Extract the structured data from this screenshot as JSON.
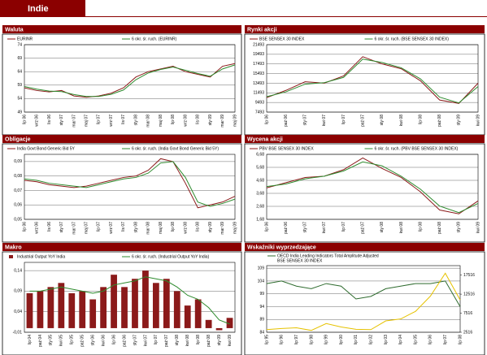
{
  "title": "Indie",
  "chart_data": [
    {
      "type": "line",
      "title": "Waluta",
      "categories": [
        "lip 06",
        "wrz 06",
        "lis 06",
        "sty 07",
        "mar 07",
        "maj 07",
        "lip 07",
        "wrz 07",
        "lis 07",
        "sty 08",
        "mar 08",
        "maj 08",
        "lip 08",
        "wrz 08",
        "lis 08",
        "sty 09",
        "mar 09",
        "maj 09"
      ],
      "series": [
        {
          "name": "EURINR",
          "color": "#8b1a1a",
          "values": [
            58,
            57,
            56.5,
            57,
            55,
            54.5,
            55,
            56,
            58,
            62,
            64,
            65,
            66,
            64,
            63,
            62,
            66,
            67
          ]
        },
        {
          "name": "6 okr. śr. ruch. (EURINR)",
          "color": "#2e8b2e",
          "values": [
            58.5,
            57.5,
            56.8,
            56.6,
            55.5,
            54.8,
            54.8,
            55.6,
            57.2,
            61,
            63.5,
            64.8,
            65.7,
            64.5,
            63.3,
            62.3,
            65,
            66.5
          ]
        }
      ],
      "ylim": [
        49,
        74
      ],
      "yticks": [
        49,
        54,
        59,
        64,
        69,
        74
      ],
      "grid": true
    },
    {
      "type": "line",
      "title": "Rynki akcji",
      "categories": [
        "lip 06",
        "paź 06",
        "sty 07",
        "kwi 07",
        "lip 07",
        "paź 07",
        "sty 08",
        "kwi 08",
        "lip 08",
        "paź 08",
        "sty 09",
        "kwi 09"
      ],
      "series": [
        {
          "name": "BSE SENSEX 30 INDEX",
          "color": "#8b1a1a",
          "values": [
            10500,
            12000,
            13800,
            13500,
            15000,
            19000,
            17500,
            16500,
            14000,
            10000,
            9300,
            13500
          ]
        },
        {
          "name": "6 okr. śr. ruch. (BSE SENSEX 30 INDEX)",
          "color": "#2e8b2e",
          "values": [
            10700,
            11700,
            13300,
            13600,
            14700,
            18500,
            17800,
            16700,
            14400,
            10600,
            9400,
            12800
          ]
        }
      ],
      "ylim": [
        7493,
        21493
      ],
      "yticks": [
        7493,
        9493,
        11493,
        13493,
        15493,
        17493,
        19493,
        21493
      ],
      "grid": true
    },
    {
      "type": "line",
      "title": "Obligacje",
      "categories": [
        "lip 06",
        "wrz 06",
        "lis 06",
        "sty 07",
        "mar 07",
        "maj 07",
        "lip 07",
        "wrz 07",
        "lis 07",
        "sty 08",
        "mar 08",
        "maj 08",
        "lip 08",
        "wrz 08",
        "lis 08",
        "sty 09",
        "mar 09",
        "maj 09"
      ],
      "series": [
        {
          "name": "India Govt Bond Generic Bid 5Y",
          "color": "#8b1a1a",
          "values": [
            0.077,
            0.076,
            0.074,
            0.073,
            0.072,
            0.073,
            0.075,
            0.077,
            0.079,
            0.08,
            0.084,
            0.092,
            0.09,
            0.075,
            0.058,
            0.06,
            0.062,
            0.066
          ]
        },
        {
          "name": "6 okr. śr. ruch. (India Govt Bond Generic Bid 5Y)",
          "color": "#2e8b2e",
          "values": [
            0.078,
            0.077,
            0.075,
            0.074,
            0.073,
            0.072,
            0.074,
            0.076,
            0.078,
            0.079,
            0.082,
            0.089,
            0.09,
            0.079,
            0.062,
            0.059,
            0.061,
            0.064
          ]
        }
      ],
      "ylim": [
        0.05,
        0.095
      ],
      "yticks": [
        {
          "value": 0.05,
          "label": "0,05"
        },
        {
          "value": 0.06,
          "label": "0,06"
        },
        {
          "value": 0.07,
          "label": "0,07"
        },
        {
          "value": 0.08,
          "label": "0,08"
        },
        {
          "value": 0.09,
          "label": "0,09"
        }
      ],
      "grid": true
    },
    {
      "type": "line",
      "title": "Wycena akcji",
      "categories": [
        "lip 06",
        "paź 06",
        "sty 07",
        "kwi 07",
        "lip 07",
        "paź 07",
        "sty 08",
        "kwi 08",
        "lip 08",
        "paź 08",
        "sty 09",
        "kwi 09"
      ],
      "series": [
        {
          "name": "PBV BSE SENSEX 30 INDEX",
          "color": "#8b1a1a",
          "values": [
            4.1,
            4.5,
            4.9,
            5.0,
            5.5,
            6.4,
            5.6,
            4.9,
            3.8,
            2.4,
            2.1,
            3.1
          ]
        },
        {
          "name": "6 okr. śr. ruch. (PBV BSE SENSEX 30 INDEX)",
          "color": "#2e8b2e",
          "values": [
            4.2,
            4.4,
            4.8,
            5.0,
            5.4,
            6.1,
            5.8,
            5.0,
            4.0,
            2.7,
            2.2,
            2.9
          ]
        }
      ],
      "ylim": [
        1.68,
        6.68
      ],
      "yticks": [
        {
          "value": 1.68,
          "label": "1,68"
        },
        {
          "value": 2.68,
          "label": "2,68"
        },
        {
          "value": 3.68,
          "label": "3,68"
        },
        {
          "value": 4.68,
          "label": "4,68"
        },
        {
          "value": 5.68,
          "label": "5,68"
        },
        {
          "value": 6.68,
          "label": "6,68"
        }
      ],
      "grid": true
    },
    {
      "type": "bar",
      "title": "Makro",
      "categories": [
        "lip 04",
        "paź 04",
        "sty 05",
        "kwi 05",
        "lip 05",
        "paź 05",
        "sty 06",
        "kwi 06",
        "lip 06",
        "paź 06",
        "sty 07",
        "kwi 07",
        "lip 07",
        "paź 07",
        "sty 08",
        "kwi 08",
        "lip 08",
        "paź 08",
        "sty 09",
        "kwi 09"
      ],
      "series": [
        {
          "name": "Industrial Output YoY India",
          "color": "#8b1a1a",
          "style": "bar",
          "values": [
            0.085,
            0.09,
            0.1,
            0.11,
            0.085,
            0.09,
            0.07,
            0.1,
            0.13,
            0.1,
            0.12,
            0.14,
            0.11,
            0.12,
            0.09,
            0.055,
            0.07,
            0.02,
            -0.005,
            0.025
          ]
        },
        {
          "name": "6 okr. śr. ruch. (Industrial Output YoY India)",
          "color": "#2e8b2e",
          "style": "line",
          "values": [
            0.09,
            0.09,
            0.095,
            0.1,
            0.095,
            0.09,
            0.085,
            0.09,
            0.105,
            0.11,
            0.115,
            0.125,
            0.12,
            0.115,
            0.1,
            0.08,
            0.07,
            0.05,
            0.02,
            0.01
          ]
        }
      ],
      "ylim": [
        -0.01,
        0.16
      ],
      "yticks": [
        {
          "value": -0.01,
          "label": "-0,01"
        },
        {
          "value": 0.04,
          "label": "0,04"
        },
        {
          "value": 0.09,
          "label": "0,09"
        },
        {
          "value": 0.14,
          "label": "0,14"
        }
      ],
      "grid": true
    },
    {
      "type": "line",
      "title": "Wskaźniki wyprzedzające",
      "categories": [
        "lip 95",
        "lip 96",
        "lip 97",
        "lip 98",
        "lip 99",
        "lip 00",
        "lip 01",
        "lip 02",
        "lip 03",
        "lip 04",
        "lip 05",
        "lip 06",
        "lip 07",
        "lip 08"
      ],
      "series": [
        {
          "name": "OECD India Leading Indicators Total Amplitude Adjusted",
          "color": "#2e6b2e",
          "values": [
            103,
            104,
            102,
            101,
            103,
            102,
            97,
            98,
            101,
            102,
            103,
            103,
            104,
            94
          ]
        },
        {
          "name": "BSE SENSEX 30 INDEX",
          "color": "#e6c200",
          "axis": "y2",
          "values": [
            3200,
            3500,
            3700,
            3000,
            4800,
            3900,
            3300,
            3200,
            5500,
            6000,
            8000,
            12000,
            18000,
            11000
          ]
        }
      ],
      "ylim": [
        84,
        110
      ],
      "yticks": [
        84,
        89,
        94,
        99,
        104,
        109
      ],
      "y2lim": [
        2516,
        20000
      ],
      "y2ticks": [
        2516,
        7516,
        12516,
        17516
      ],
      "grid": true
    }
  ]
}
